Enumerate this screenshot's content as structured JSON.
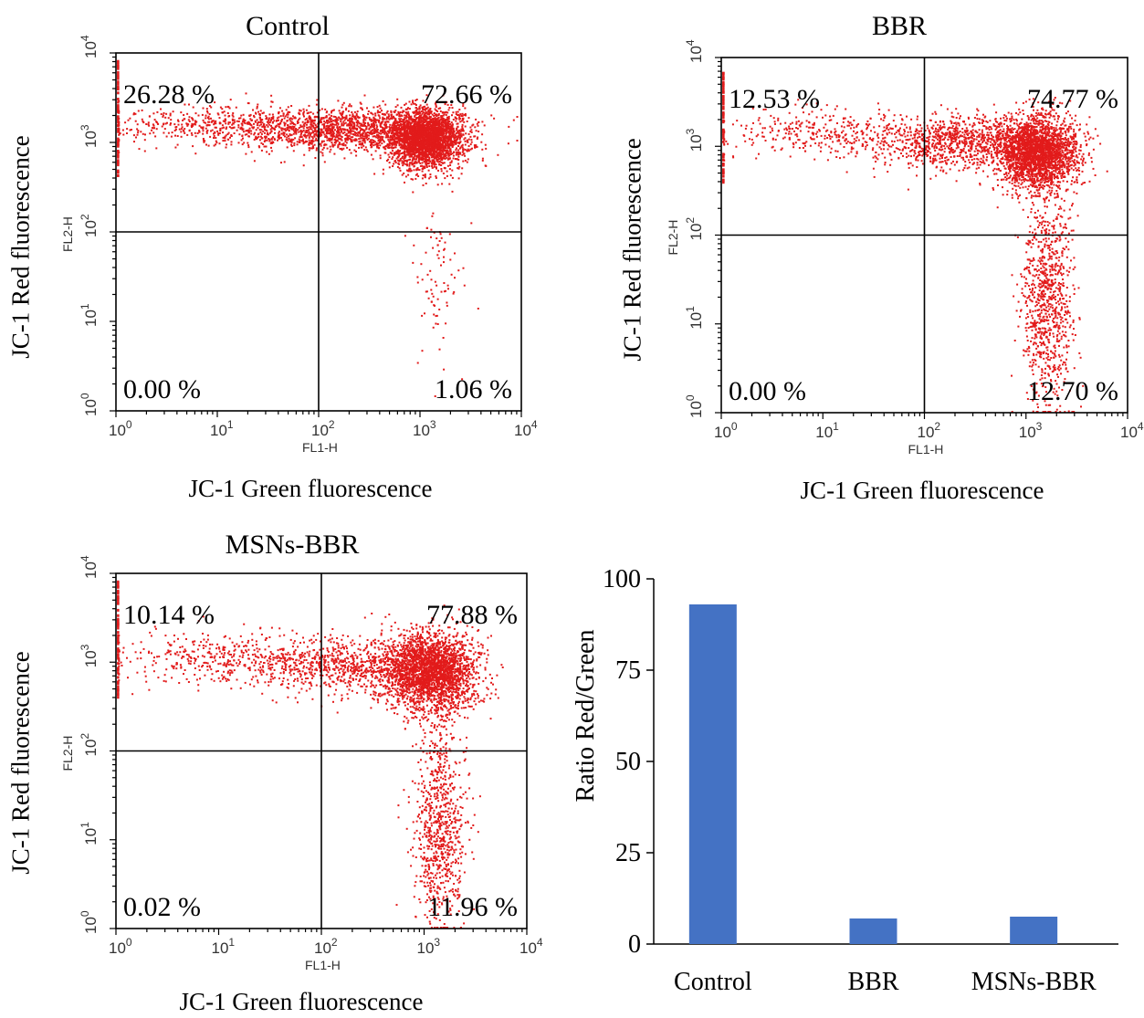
{
  "chart_data": [
    {
      "type": "scatter",
      "title": "Control",
      "xlabel": "JC-1 Green fluorescence",
      "ylabel": "JC-1 Red fluorescence",
      "x_channel": "FL1-H",
      "y_channel": "FL2-H",
      "scale": "log",
      "xlim": [
        1,
        10000
      ],
      "ylim": [
        1,
        10000
      ],
      "gate": [
        100,
        100
      ],
      "x_ticks": [
        "10^0",
        "10^1",
        "10^2",
        "10^3",
        "10^4"
      ],
      "y_ticks": [
        "10^0",
        "10^1",
        "10^2",
        "10^3",
        "10^4"
      ],
      "quadrants": {
        "upper_left": "26.28 %",
        "upper_right": "72.66 %",
        "lower_left": "0.00 %",
        "lower_right": "1.06 %"
      },
      "point_color": "#e21b1b"
    },
    {
      "type": "scatter",
      "title": "BBR",
      "xlabel": "JC-1 Green fluorescence",
      "ylabel": "JC-1 Red fluorescence",
      "x_channel": "FL1-H",
      "y_channel": "FL2-H",
      "scale": "log",
      "xlim": [
        1,
        10000
      ],
      "ylim": [
        1,
        10000
      ],
      "gate": [
        100,
        100
      ],
      "x_ticks": [
        "10^0",
        "10^1",
        "10^2",
        "10^3",
        "10^4"
      ],
      "y_ticks": [
        "10^0",
        "10^1",
        "10^2",
        "10^3",
        "10^4"
      ],
      "quadrants": {
        "upper_left": "12.53 %",
        "upper_right": "74.77 %",
        "lower_left": "0.00 %",
        "lower_right": "12.70 %"
      },
      "point_color": "#e21b1b"
    },
    {
      "type": "scatter",
      "title": "MSNs-BBR",
      "xlabel": "JC-1 Green fluorescence",
      "ylabel": "JC-1 Red fluorescence",
      "x_channel": "FL1-H",
      "y_channel": "FL2-H",
      "scale": "log",
      "xlim": [
        1,
        10000
      ],
      "ylim": [
        1,
        10000
      ],
      "gate": [
        100,
        100
      ],
      "x_ticks": [
        "10^0",
        "10^1",
        "10^2",
        "10^3",
        "10^4"
      ],
      "y_ticks": [
        "10^0",
        "10^1",
        "10^2",
        "10^3",
        "10^4"
      ],
      "quadrants": {
        "upper_left": "10.14 %",
        "upper_right": "77.88 %",
        "lower_left": "0.02 %",
        "lower_right": "11.96 %"
      },
      "point_color": "#e21b1b"
    },
    {
      "type": "bar",
      "categories": [
        "Control",
        "BBR",
        "MSNs-BBR"
      ],
      "values": [
        93,
        7,
        7.5
      ],
      "ylabel": "Ratio  Red/Green",
      "xlabel": "",
      "ylim": [
        0,
        100
      ],
      "yticks": [
        0,
        25,
        50,
        75,
        100
      ],
      "bar_color": "#4472c4"
    }
  ]
}
